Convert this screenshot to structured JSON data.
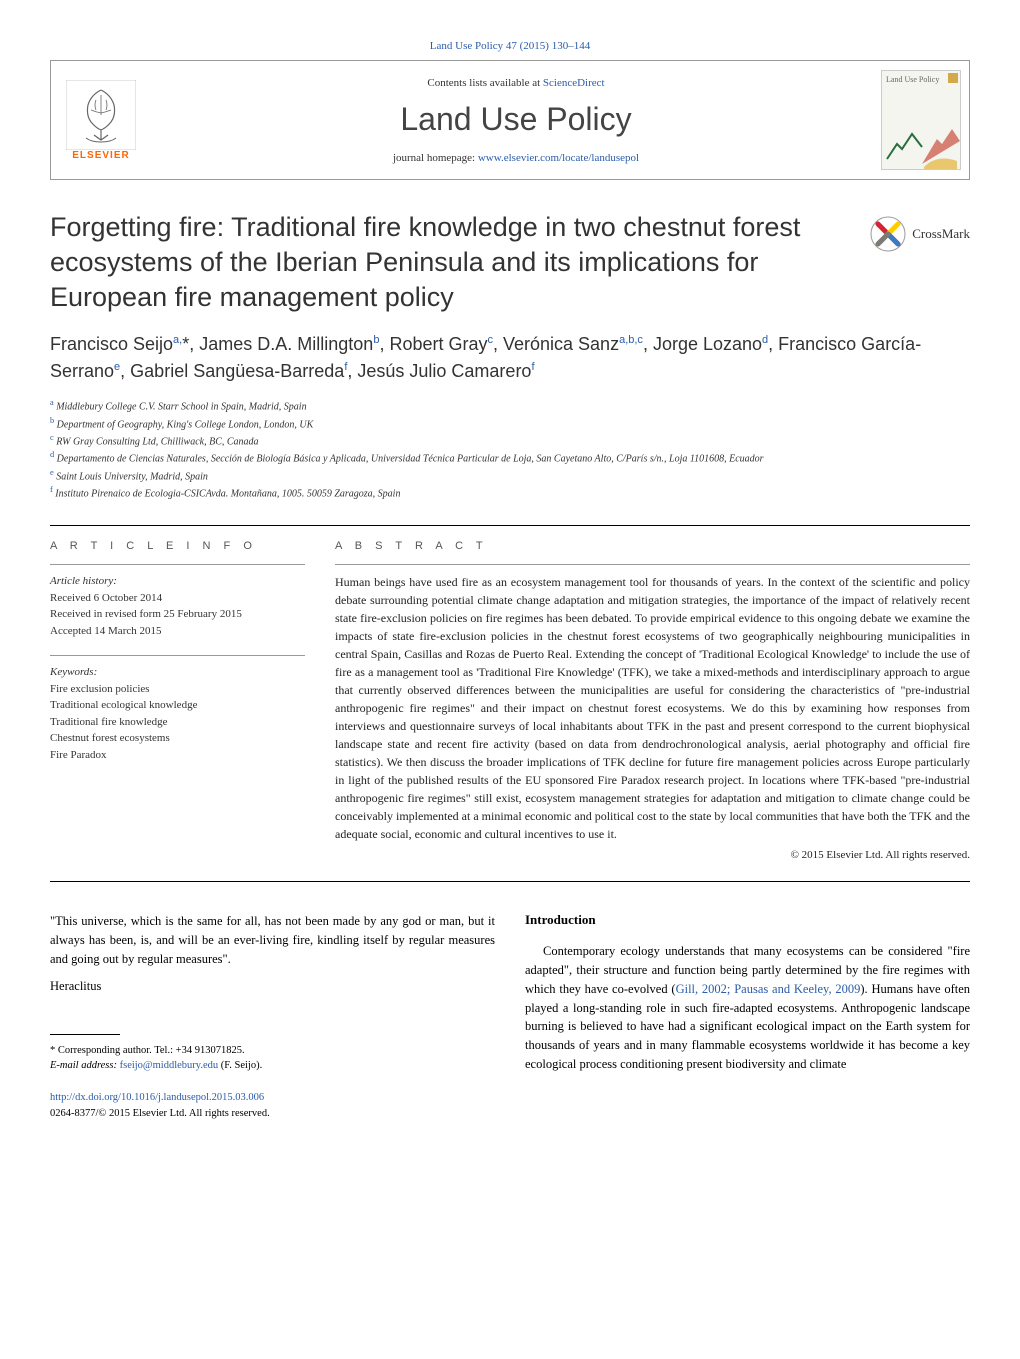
{
  "citation": "Land Use Policy 47 (2015) 130–144",
  "header": {
    "contents_prefix": "Contents lists available at ",
    "contents_link": "ScienceDirect",
    "journal": "Land Use Policy",
    "homepage_prefix": "journal homepage: ",
    "homepage_link": "www.elsevier.com/locate/landusepol",
    "elsevier": "ELSEVIER",
    "cover_label": "Land Use Policy"
  },
  "crossmark": "CrossMark",
  "title": "Forgetting fire: Traditional fire knowledge in two chestnut forest ecosystems of the Iberian Peninsula and its implications for European fire management policy",
  "authors_html": "Francisco Seijo<sup>a,</sup>*, James D.A. Millington<sup>b</sup>, Robert Gray<sup>c</sup>, Verónica Sanz<sup>a,b,c</sup>, Jorge Lozano<sup>d</sup>, Francisco García-Serrano<sup>e</sup>, Gabriel Sangüesa-Barreda<sup>f</sup>, Jesús Julio Camarero<sup>f</sup>",
  "affiliations": [
    {
      "sup": "a",
      "text": " Middlebury College C.V. Starr School in Spain, Madrid, Spain"
    },
    {
      "sup": "b",
      "text": " Department of Geography, King's College London, London, UK"
    },
    {
      "sup": "c",
      "text": " RW Gray Consulting Ltd, Chilliwack, BC, Canada"
    },
    {
      "sup": "d",
      "text": " Departamento de Ciencias Naturales, Sección de Biología Básica y Aplicada, Universidad Técnica Particular de Loja, San Cayetano Alto, C/París s/n., Loja 1101608, Ecuador"
    },
    {
      "sup": "e",
      "text": " Saint Louis University, Madrid, Spain"
    },
    {
      "sup": "f",
      "text": " Instituto Pirenaico de Ecologia-CSICAvda. Montañana, 1005. 50059 Zaragoza, Spain"
    }
  ],
  "article_info": {
    "label": "A R T I C L E   I N F O",
    "history_label": "Article history:",
    "received": "Received 6 October 2014",
    "revised": "Received in revised form 25 February 2015",
    "accepted": "Accepted 14 March 2015",
    "keywords_label": "Keywords:",
    "keywords": [
      "Fire exclusion policies",
      "Traditional ecological knowledge",
      "Traditional fire knowledge",
      "Chestnut forest ecosystems",
      "Fire Paradox"
    ]
  },
  "abstract": {
    "label": "A B S T R A C T",
    "text": "Human beings have used fire as an ecosystem management tool for thousands of years. In the context of the scientific and policy debate surrounding potential climate change adaptation and mitigation strategies, the importance of the impact of relatively recent state fire-exclusion policies on fire regimes has been debated. To provide empirical evidence to this ongoing debate we examine the impacts of state fire-exclusion policies in the chestnut forest ecosystems of two geographically neighbouring municipalities in central Spain, Casillas and Rozas de Puerto Real. Extending the concept of 'Traditional Ecological Knowledge' to include the use of fire as a management tool as 'Traditional Fire Knowledge' (TFK), we take a mixed-methods and interdisciplinary approach to argue that currently observed differences between the municipalities are useful for considering the characteristics of \"pre-industrial anthropogenic fire regimes\" and their impact on chestnut forest ecosystems. We do this by examining how responses from interviews and questionnaire surveys of local inhabitants about TFK in the past and present correspond to the current biophysical landscape state and recent fire activity (based on data from dendrochronological analysis, aerial photography and official fire statistics). We then discuss the broader implications of TFK decline for future fire management policies across Europe particularly in light of the published results of the EU sponsored Fire Paradox research project. In locations where TFK-based \"pre-industrial anthropogenic fire regimes\" still exist, ecosystem management strategies for adaptation and mitigation to climate change could be conceivably implemented at a minimal economic and political cost to the state by local communities that have both the TFK and the adequate social, economic and cultural incentives to use it.",
    "copyright": "© 2015 Elsevier Ltd. All rights reserved."
  },
  "quote": {
    "text": "\"This universe, which is the same for all, has not been made by any god or man, but it always has been, is, and will be an ever-living fire, kindling itself by regular measures and going out by regular measures\".",
    "author": "Heraclitus"
  },
  "intro": {
    "heading": "Introduction",
    "text_before": "Contemporary ecology understands that many ecosystems can be considered \"fire adapted\", their structure and function being partly determined by the fire regimes with which they have co-evolved (",
    "link": "Gill, 2002; Pausas and Keeley, 2009",
    "text_after": "). Humans have often played a long-standing role in such fire-adapted ecosystems. Anthropogenic landscape burning is believed to have had a significant ecological impact on the Earth system for thousands of years and in many flammable ecosystems worldwide it has become a key ecological process conditioning present biodiversity and climate"
  },
  "corresponding": {
    "line1": "* Corresponding author. Tel.: +34 913071825.",
    "email_prefix": "E-mail address: ",
    "email": "fseijo@middlebury.edu",
    "email_suffix": " (F. Seijo)."
  },
  "doi": {
    "link": "http://dx.doi.org/10.1016/j.landusepol.2015.03.006",
    "issn": "0264-8377/© 2015 Elsevier Ltd. All rights reserved."
  },
  "colors": {
    "link": "#2a5caa",
    "elsevier_orange": "#ff6600"
  }
}
